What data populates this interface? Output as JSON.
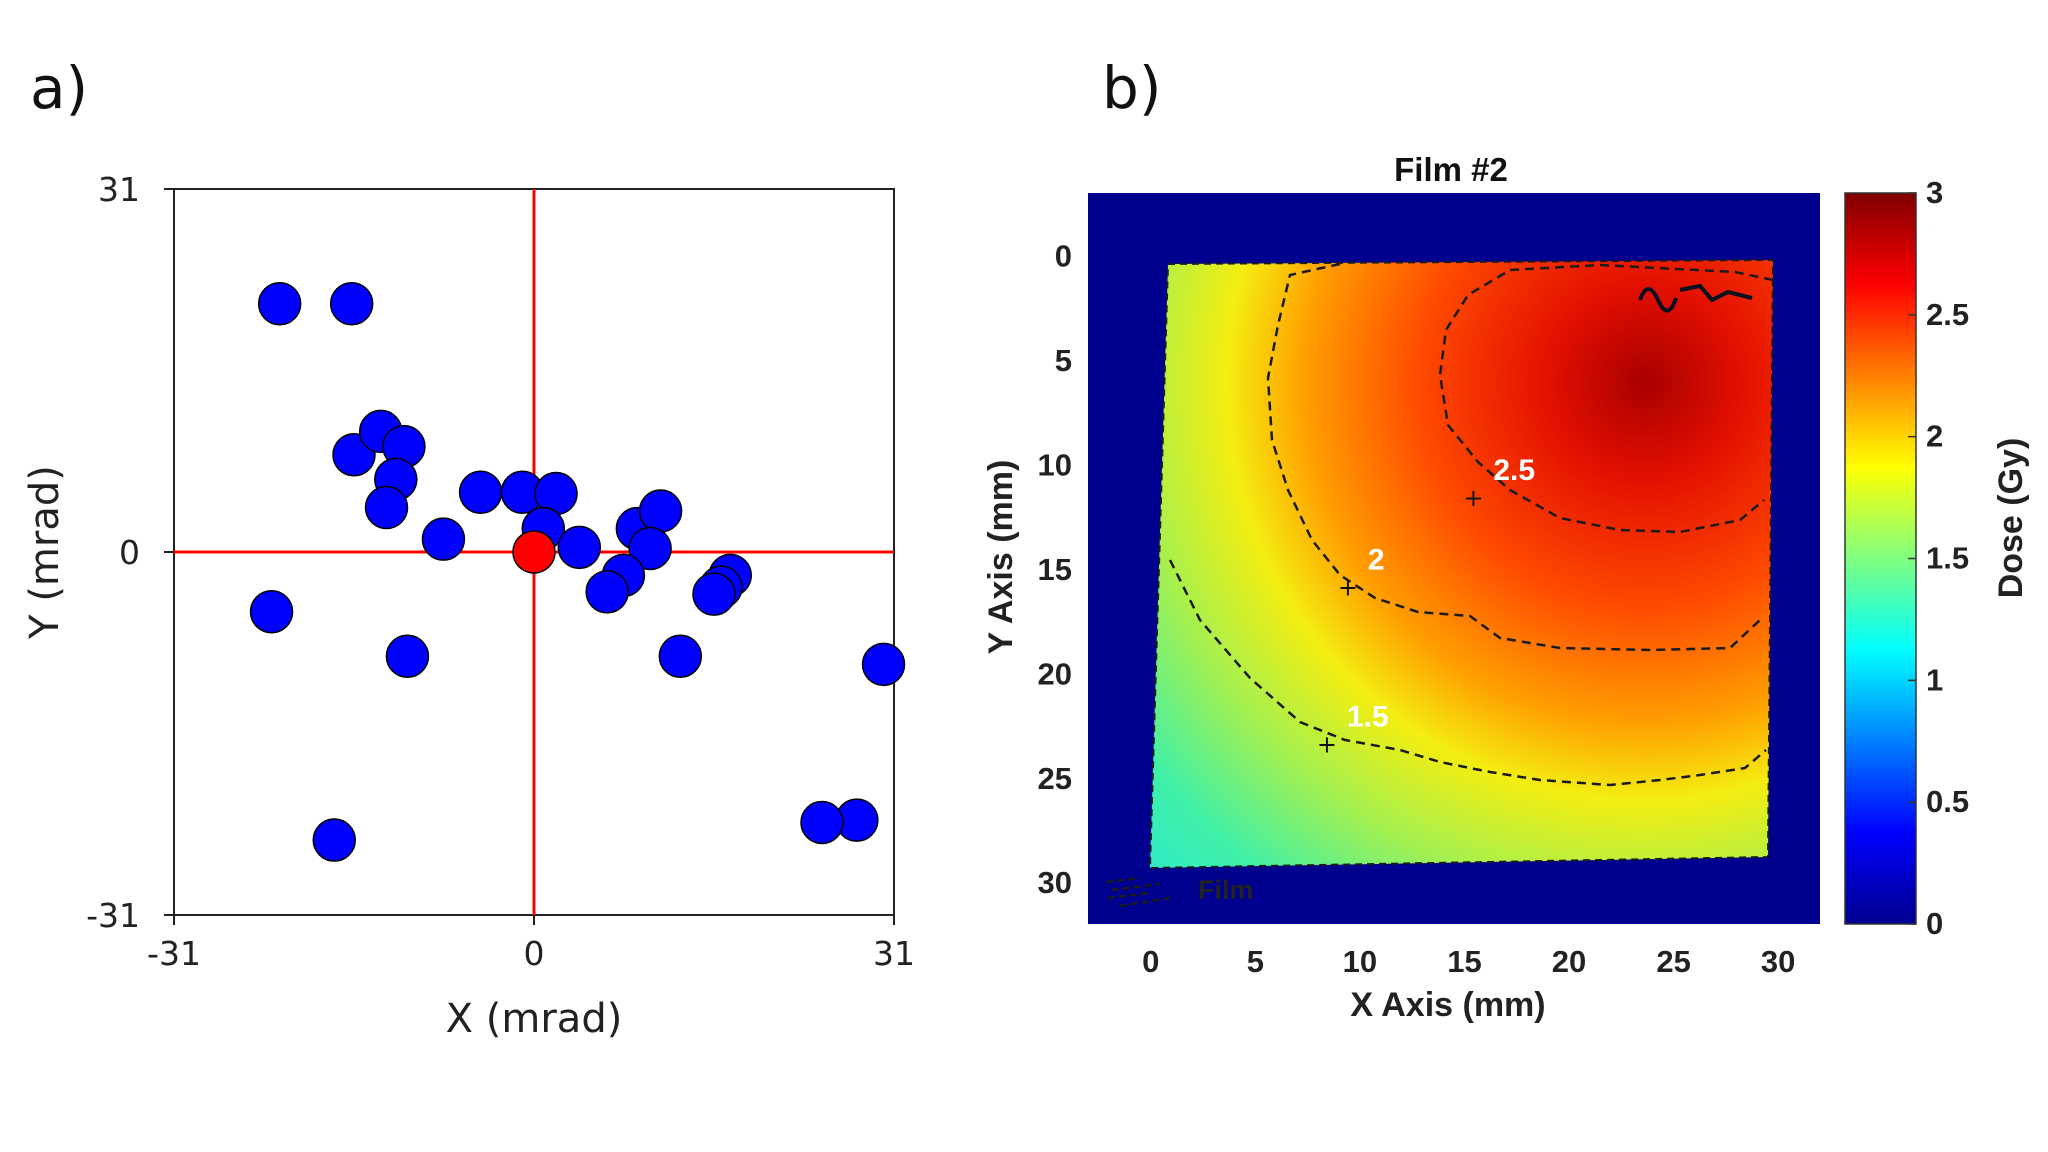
{
  "chart_data": [
    {
      "panel": "a)",
      "type": "scatter",
      "title": "",
      "xlabel": "X (mrad)",
      "ylabel": "Y (mrad)",
      "xlim": [
        -31,
        31
      ],
      "ylim": [
        -31,
        31
      ],
      "xticks": [
        "-31",
        "0",
        "31"
      ],
      "yticks": [
        "31",
        "0",
        "-31"
      ],
      "crosshair_color": "#ff0000",
      "series": [
        {
          "name": "measurements",
          "color": "#0000ff",
          "points": [
            [
              -21.9,
              21.2
            ],
            [
              -15.7,
              21.2
            ],
            [
              -15.5,
              8.3
            ],
            [
              -13.2,
              10.3
            ],
            [
              -11.2,
              9.0
            ],
            [
              -11.9,
              6.2
            ],
            [
              -12.7,
              3.8
            ],
            [
              -7.8,
              1.1
            ],
            [
              -4.6,
              5.1
            ],
            [
              -1.0,
              5.1
            ],
            [
              1.9,
              5.0
            ],
            [
              0.8,
              2.0
            ],
            [
              3.9,
              0.4
            ],
            [
              8.9,
              2.0
            ],
            [
              10.9,
              3.5
            ],
            [
              10.0,
              0.3
            ],
            [
              7.7,
              -2.0
            ],
            [
              6.3,
              -3.4
            ],
            [
              16.9,
              -2.0
            ],
            [
              16.1,
              -3.0
            ],
            [
              15.5,
              -3.6
            ],
            [
              12.6,
              -8.9
            ],
            [
              -22.6,
              -5.1
            ],
            [
              -10.9,
              -8.9
            ],
            [
              -17.2,
              -24.6
            ],
            [
              27.8,
              -22.9
            ],
            [
              24.8,
              -23.1
            ],
            [
              30.1,
              -9.6
            ]
          ]
        },
        {
          "name": "origin",
          "color": "#ff0000",
          "points": [
            [
              0,
              0
            ]
          ]
        }
      ]
    },
    {
      "panel": "b)",
      "type": "heatmap",
      "title": "Film #2",
      "xlabel": "X Axis (mm)",
      "ylabel": "Y Axis (mm)",
      "xlim": [
        -3,
        32
      ],
      "ylim": [
        32,
        -3
      ],
      "xticks": [
        0,
        5,
        10,
        15,
        20,
        25,
        30
      ],
      "yticks": [
        0,
        5,
        10,
        15,
        20,
        25,
        30
      ],
      "film_extent_mm": [
        0,
        30
      ],
      "dose_peak": {
        "x": 26,
        "y": 5,
        "value": 3.0
      },
      "dose_min": {
        "x": 0,
        "y": 30,
        "value": 1.1
      },
      "colorbar": {
        "label": "Dose (Gy)",
        "range": [
          0,
          3
        ],
        "ticks": [
          "3",
          "2.5",
          "2",
          "1.5",
          "1",
          "0.5",
          "0"
        ],
        "colormap": "jet"
      },
      "contours": [
        {
          "level": "2.5",
          "label_at": [
            16,
            11.5
          ]
        },
        {
          "level": "2",
          "label_at": [
            10,
            15.8
          ]
        },
        {
          "level": "1.5",
          "label_at": [
            9,
            23.3
          ]
        }
      ],
      "legend": {
        "entry": "Film",
        "placement": "bottom-left"
      },
      "background_color": "#00008f"
    }
  ]
}
